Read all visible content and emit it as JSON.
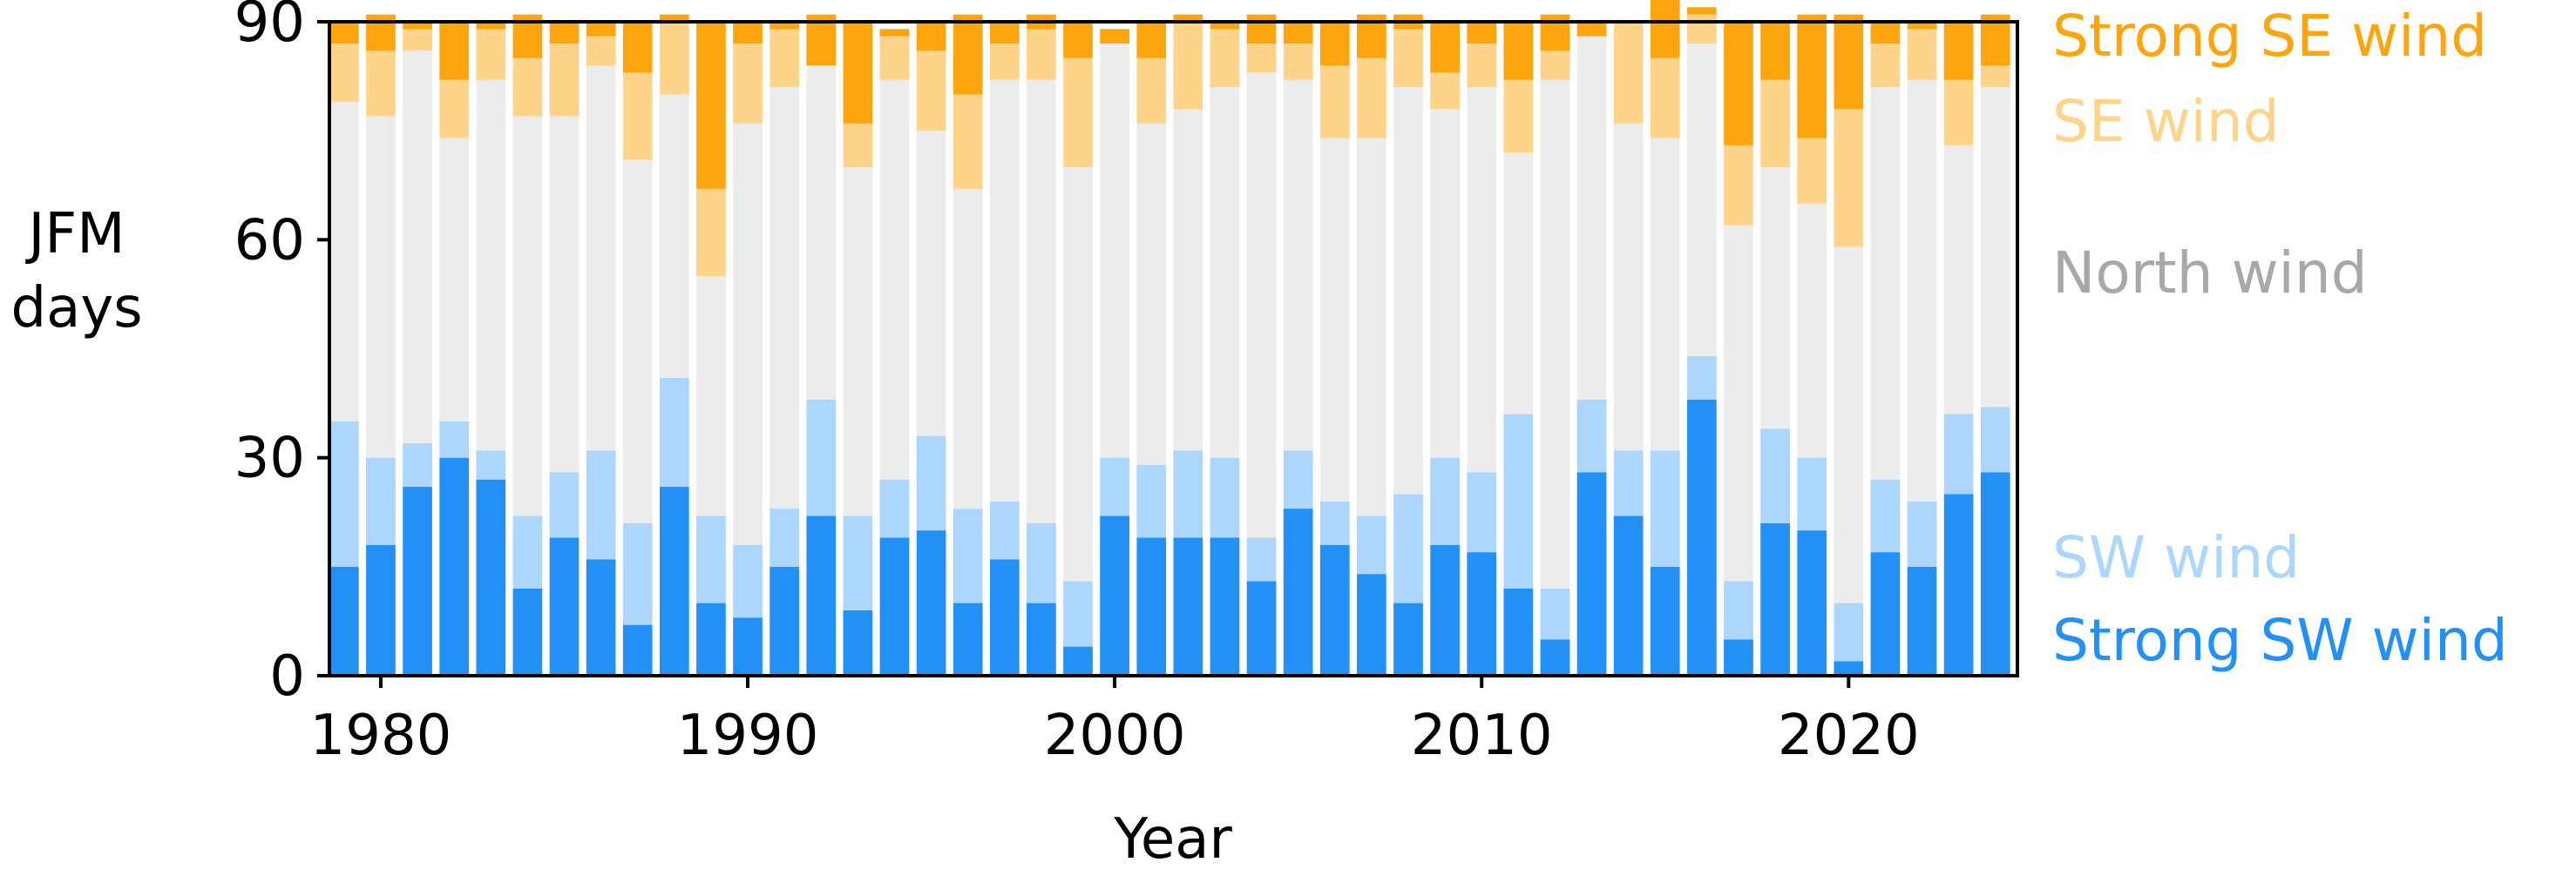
{
  "chart_data": {
    "type": "bar",
    "stacked": true,
    "xlabel": "Year",
    "ylabel_lines": [
      "JFM",
      "days"
    ],
    "ylim": [
      0,
      90
    ],
    "yticks": [
      0,
      30,
      60,
      90
    ],
    "xlim": [
      1978.6,
      2024.6
    ],
    "xticks": [
      1980,
      1990,
      2000,
      2010,
      2020
    ],
    "grid": false,
    "legend_placement": "right",
    "years": [
      1979,
      1980,
      1981,
      1982,
      1983,
      1984,
      1985,
      1986,
      1987,
      1988,
      1989,
      1990,
      1991,
      1992,
      1993,
      1994,
      1995,
      1996,
      1997,
      1998,
      1999,
      2000,
      2001,
      2002,
      2003,
      2004,
      2005,
      2006,
      2007,
      2008,
      2009,
      2010,
      2011,
      2012,
      2013,
      2014,
      2015,
      2016,
      2017,
      2018,
      2019,
      2020,
      2021,
      2022,
      2023,
      2024
    ],
    "series": [
      {
        "name": "Strong SW wind",
        "color": "#2390f5",
        "values": [
          15,
          18,
          26,
          30,
          27,
          12,
          19,
          16,
          7,
          26,
          10,
          8,
          15,
          22,
          9,
          19,
          20,
          10,
          16,
          10,
          4,
          22,
          19,
          19,
          19,
          13,
          23,
          18,
          14,
          10,
          18,
          17,
          12,
          5,
          28,
          22,
          15,
          38,
          5,
          21,
          20,
          2,
          17,
          15,
          25,
          28
        ]
      },
      {
        "name": "SW wind",
        "color": "#acd6fb",
        "values": [
          20,
          12,
          6,
          5,
          4,
          10,
          9,
          15,
          14,
          15,
          12,
          10,
          8,
          16,
          13,
          8,
          13,
          13,
          8,
          11,
          9,
          8,
          10,
          12,
          11,
          6,
          8,
          6,
          8,
          15,
          12,
          11,
          24,
          7,
          10,
          9,
          16,
          6,
          8,
          13,
          10,
          8,
          10,
          9,
          11,
          9
        ]
      },
      {
        "name": "North wind",
        "color": "#ececec",
        "values": [
          44,
          47,
          54,
          39,
          51,
          55,
          49,
          53,
          50,
          39,
          33,
          58,
          58,
          46,
          48,
          55,
          42,
          44,
          58,
          61,
          57,
          57,
          47,
          47,
          51,
          64,
          51,
          50,
          52,
          56,
          48,
          53,
          36,
          70,
          50,
          45,
          43,
          43,
          49,
          36,
          35,
          49,
          54,
          58,
          37,
          44
        ]
      },
      {
        "name": "SE wind",
        "color": "#fed38a",
        "values": [
          8,
          9,
          3,
          8,
          7,
          8,
          10,
          4,
          12,
          10,
          12,
          11,
          8,
          0,
          6,
          6,
          11,
          13,
          5,
          7,
          15,
          0,
          9,
          12,
          8,
          4,
          5,
          10,
          11,
          8,
          5,
          6,
          10,
          4,
          0,
          14,
          11,
          4,
          11,
          12,
          9,
          19,
          6,
          7,
          9,
          3
        ]
      },
      {
        "name": "Strong SE wind",
        "color": "#fda50f",
        "values": [
          3,
          5,
          1,
          8,
          1,
          6,
          3,
          2,
          7,
          1,
          23,
          3,
          1,
          7,
          14,
          1,
          4,
          11,
          3,
          2,
          5,
          2,
          5,
          1,
          1,
          4,
          3,
          6,
          6,
          2,
          7,
          3,
          8,
          5,
          2,
          0,
          8,
          1,
          17,
          8,
          17,
          13,
          3,
          1,
          8,
          7
        ]
      }
    ]
  }
}
